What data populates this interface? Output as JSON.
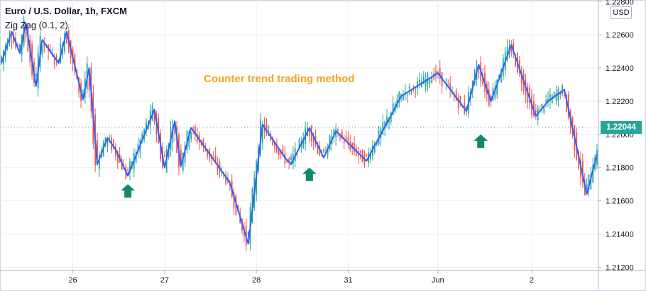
{
  "header": {
    "title": "Euro / U.S. Dollar, 1h, FXCM",
    "indicator": "Zig Zag (0.1, 2)",
    "currency": "USD"
  },
  "annotation": {
    "text": "Counter trend trading method",
    "color": "#f7a21b"
  },
  "current_price": {
    "label": "1.22044",
    "value": 1.22044,
    "color": "#26a69a"
  },
  "colors": {
    "up": "#26a69a",
    "down": "#ef5350",
    "zigzag": "#2962ff",
    "grid": "#eceef2",
    "axis_text": "#131722"
  },
  "icons": [
    "up-arrow-icon"
  ],
  "chart_data": {
    "type": "candlestick",
    "title": "Euro / U.S. Dollar, 1h, FXCM",
    "y_axis": {
      "ticks": [
        "1.22800",
        "1.22600",
        "1.22400",
        "1.22200",
        "1.22000",
        "1.21800",
        "1.21600",
        "1.21400",
        "1.21200"
      ],
      "ylim": [
        1.2118,
        1.2281
      ]
    },
    "x_axis": {
      "labels": [
        "26",
        "27",
        "28",
        "31",
        "Jun",
        "2"
      ]
    },
    "series": [
      {
        "name": "Zig Zag (0.1, 2)",
        "type": "line",
        "points": [
          [
            0,
            1.2243
          ],
          [
            5,
            1.2262
          ],
          [
            9,
            1.2249
          ],
          [
            12,
            1.2267
          ],
          [
            17,
            1.2229
          ],
          [
            20,
            1.2257
          ],
          [
            28,
            1.2243
          ],
          [
            32,
            1.2262
          ],
          [
            40,
            1.2221
          ],
          [
            43,
            1.224
          ],
          [
            47,
            1.2182
          ],
          [
            52,
            1.2198
          ],
          [
            56,
            1.2191
          ],
          [
            62,
            1.2175
          ],
          [
            75,
            1.2215
          ],
          [
            80,
            1.218
          ],
          [
            85,
            1.2208
          ],
          [
            88,
            1.2181
          ],
          [
            93,
            1.2204
          ],
          [
            112,
            1.2171
          ],
          [
            121,
            1.2134
          ],
          [
            128,
            1.2206
          ],
          [
            139,
            1.2186
          ],
          [
            142,
            1.2182
          ],
          [
            151,
            1.2204
          ],
          [
            158,
            1.2186
          ],
          [
            164,
            1.2202
          ],
          [
            179,
            1.2184
          ],
          [
            196,
            1.2223
          ],
          [
            214,
            1.2237
          ],
          [
            228,
            1.2214
          ],
          [
            234,
            1.2242
          ],
          [
            240,
            1.222
          ],
          [
            250,
            1.2254
          ],
          [
            262,
            1.2211
          ],
          [
            268,
            1.222
          ],
          [
            276,
            1.2227
          ],
          [
            287,
            1.2164
          ],
          [
            292,
            1.2188
          ]
        ]
      }
    ],
    "markers": [
      {
        "type": "up-arrow",
        "x": 62,
        "y": 1.217
      },
      {
        "type": "up-arrow",
        "x": 151,
        "y": 1.218
      },
      {
        "type": "up-arrow",
        "x": 235,
        "y": 1.22
      }
    ],
    "x_label_positions": [
      {
        "label": "26",
        "x": 35
      },
      {
        "label": "27",
        "x": 80
      },
      {
        "label": "28",
        "x": 125
      },
      {
        "label": "31",
        "x": 170
      },
      {
        "label": "Jun",
        "x": 214
      },
      {
        "label": "2",
        "x": 260
      }
    ],
    "xlim": [
      0,
      292
    ]
  }
}
